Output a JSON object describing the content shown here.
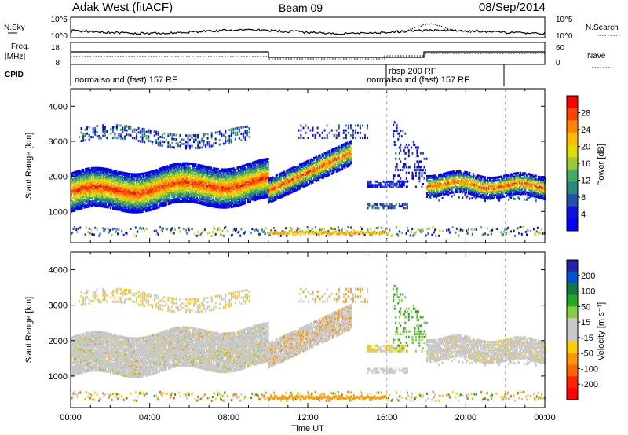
{
  "header": {
    "title": "Adak West (fitACF)",
    "beam": "Beam 09",
    "date": "08/Sep/2014"
  },
  "noise_panel": {
    "left_label": "N.Sky",
    "right_label": "N.Search",
    "left_ticks": [
      "10^5",
      "10^0"
    ],
    "right_ticks": [
      "10^5",
      "10^0"
    ]
  },
  "freq_panel": {
    "left_label_1": "Freq.",
    "left_label_2": "[MHz]",
    "right_label": "Nave",
    "left_ticks": [
      "18",
      "8"
    ],
    "right_ticks": [
      "60",
      "0"
    ]
  },
  "cpid": {
    "label": "CPID",
    "segments": [
      {
        "text": "normalsound (fast) 157 RF"
      },
      {
        "text": "rbsp 200 RF"
      },
      {
        "text": "normalsound (fast) 157 RF"
      }
    ]
  },
  "chart_data": [
    {
      "type": "heatmap",
      "name": "power",
      "ylabel": "Slant Range [km]",
      "yticks": [
        "4000",
        "3000",
        "2000",
        "1000"
      ],
      "xticks": [
        "00:00",
        "04:00",
        "08:00",
        "12:00",
        "16:00",
        "20:00",
        "00:00"
      ],
      "colorbar": {
        "label": "Power [dB]",
        "ticks": [
          "28",
          "24",
          "20",
          "16",
          "12",
          "8",
          "4"
        ],
        "colors": [
          "#ff0000",
          "#ff4400",
          "#ff8800",
          "#ffbb00",
          "#dddd00",
          "#99cc33",
          "#44aa66",
          "#2a8a7a",
          "#2255aa",
          "#1111dd",
          "#0000ff"
        ]
      }
    },
    {
      "type": "heatmap",
      "name": "velocity",
      "ylabel": "Slant Range [km]",
      "yticks": [
        "4000",
        "3000",
        "2000",
        "1000"
      ],
      "xticks": [
        "00:00",
        "04:00",
        "08:00",
        "12:00",
        "16:00",
        "20:00",
        "00:00"
      ],
      "xlabel": "Time UT",
      "colorbar": {
        "label": "Velocity [m s⁻¹]",
        "ticks": [
          "200",
          "100",
          "50",
          "15",
          "-15",
          "-50",
          "-100",
          "-200"
        ],
        "colors": [
          "#2222aa",
          "#0055cc",
          "#117744",
          "#22aa22",
          "#88cc44",
          "#c8c8c8",
          "#c8c8c8",
          "#ffcc00",
          "#ff9900",
          "#ff6600",
          "#ff2200",
          "#ff0000"
        ]
      }
    }
  ]
}
